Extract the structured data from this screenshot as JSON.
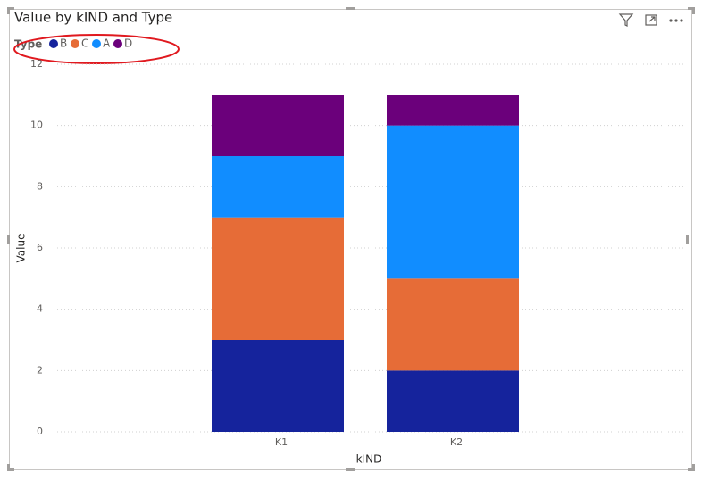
{
  "chart_data": {
    "type": "stacked_bar",
    "title": "Value by kIND and Type",
    "legend_title": "Type",
    "x_label": "kIND",
    "y_label": "Value",
    "categories": [
      "K1",
      "K2"
    ],
    "series": [
      {
        "name": "B",
        "color": "#15239c",
        "values": [
          3,
          2
        ]
      },
      {
        "name": "C",
        "color": "#e66c37",
        "values": [
          4,
          3
        ]
      },
      {
        "name": "A",
        "color": "#118dff",
        "values": [
          2,
          5
        ]
      },
      {
        "name": "D",
        "color": "#6b007b",
        "values": [
          2,
          1
        ]
      }
    ],
    "ylim": [
      0,
      12
    ],
    "yticks": [
      0,
      2,
      4,
      6,
      8,
      10,
      12
    ],
    "grid": true
  }
}
